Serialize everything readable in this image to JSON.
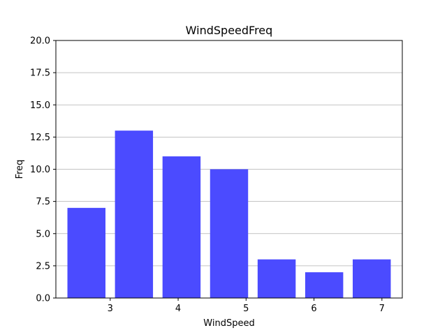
{
  "chart_data": {
    "type": "bar",
    "title": "WindSpeedFreq",
    "xlabel": "WindSpeed",
    "ylabel": "Freq",
    "bins": [
      {
        "start": 2.3,
        "end": 3.0,
        "value": 7
      },
      {
        "start": 3.0,
        "end": 3.7,
        "value": 13
      },
      {
        "start": 3.7,
        "end": 4.4,
        "value": 11
      },
      {
        "start": 4.4,
        "end": 5.1,
        "value": 10
      },
      {
        "start": 5.1,
        "end": 5.8,
        "value": 3
      },
      {
        "start": 5.8,
        "end": 6.5,
        "value": 2
      },
      {
        "start": 6.5,
        "end": 7.2,
        "value": 3
      }
    ],
    "xlim": [
      2.2,
      7.3
    ],
    "ylim": [
      0,
      20
    ],
    "xticks": [
      3,
      4,
      5,
      6,
      7
    ],
    "yticks": [
      0,
      2.5,
      5,
      7.5,
      10,
      12.5,
      15,
      17.5,
      20
    ],
    "ytick_labels": [
      "0.0",
      "2.5",
      "5.0",
      "7.5",
      "10.0",
      "12.5",
      "15.0",
      "17.5",
      "20.0"
    ],
    "bar_color": "#4b4bff",
    "grid": "y"
  }
}
